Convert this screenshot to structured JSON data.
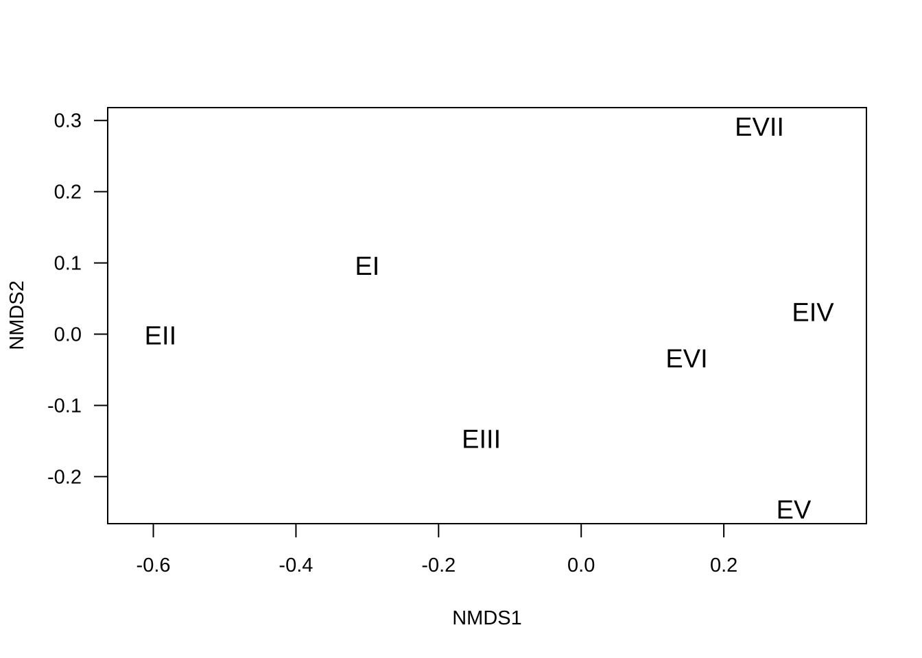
{
  "chart_data": {
    "type": "scatter",
    "title": "",
    "xlabel": "NMDS1",
    "ylabel": "NMDS2",
    "xlim": [
      -0.664,
      0.4
    ],
    "ylim": [
      -0.266,
      0.318
    ],
    "x_ticks": [
      -0.6,
      -0.4,
      -0.2,
      0.0,
      0.2
    ],
    "x_tick_labels": [
      "-0.6",
      "-0.4",
      "-0.2",
      "0.0",
      "0.2"
    ],
    "y_ticks": [
      -0.2,
      -0.1,
      0.0,
      0.1,
      0.2,
      0.3
    ],
    "y_tick_labels": [
      "-0.2",
      "-0.1",
      "0.0",
      "0.1",
      "0.2",
      "0.3"
    ],
    "grid": false,
    "marker": "text",
    "points": [
      {
        "label": "EI",
        "x": -0.3,
        "y": 0.095
      },
      {
        "label": "EII",
        "x": -0.59,
        "y": -0.003
      },
      {
        "label": "EIII",
        "x": -0.14,
        "y": -0.148
      },
      {
        "label": "EIV",
        "x": 0.325,
        "y": 0.03
      },
      {
        "label": "EV",
        "x": 0.298,
        "y": -0.247
      },
      {
        "label": "EVI",
        "x": 0.148,
        "y": -0.035
      },
      {
        "label": "EVII",
        "x": 0.25,
        "y": 0.29
      }
    ]
  }
}
